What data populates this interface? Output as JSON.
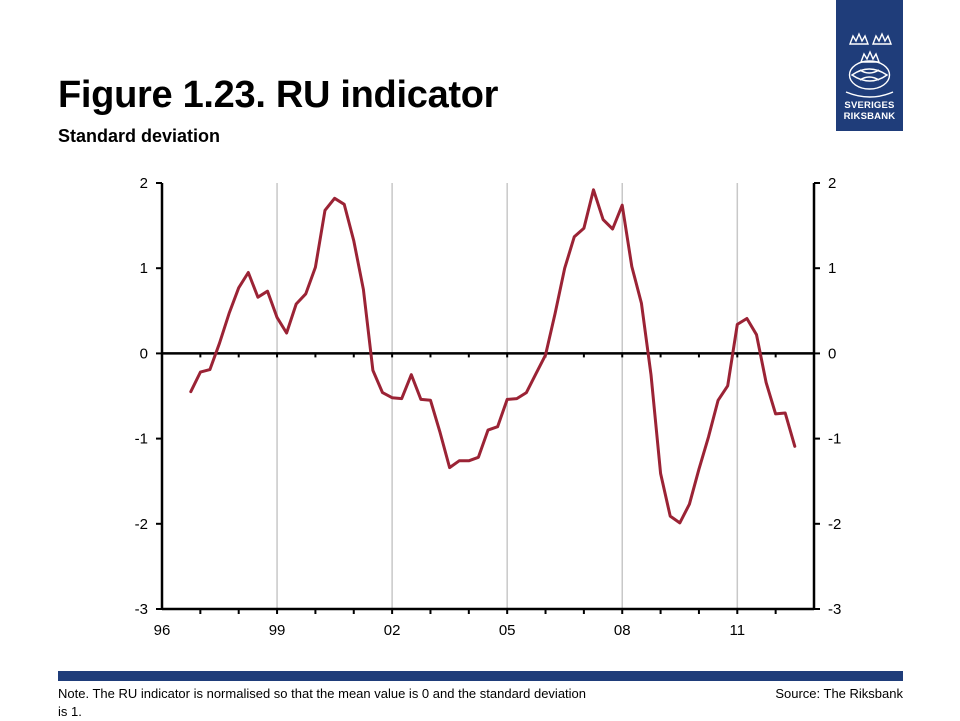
{
  "header": {
    "title": "Figure 1.23. RU indicator",
    "subtitle": "Standard deviation"
  },
  "logo": {
    "line1": "SVERIGES",
    "line2": "RIKSBANK",
    "background": "#1f3d7a"
  },
  "footer": {
    "note": "Note. The RU indicator is normalised so that the mean value is 0 and the standard deviation is 1.",
    "source": "Source: The Riksbank",
    "bar_color": "#1f3d7a"
  },
  "chart_data": {
    "type": "line",
    "title": "Figure 1.23. RU indicator",
    "ylabel": "Standard deviation",
    "xlim": [
      1996,
      2013
    ],
    "ylim": [
      -3,
      2
    ],
    "x_tick_labels": [
      "96",
      "99",
      "02",
      "05",
      "08",
      "11"
    ],
    "x_tick_years": [
      1996,
      1999,
      2002,
      2005,
      2008,
      2011
    ],
    "y_ticks_left": [
      "2",
      "1",
      "0",
      "-1",
      "-2",
      "-3"
    ],
    "y_ticks_right": [
      "2",
      "1",
      "0",
      "-1",
      "-2",
      "-3"
    ],
    "grid": "vertical",
    "line_color": "#9b2335",
    "series": [
      {
        "x": [
          1996.75,
          1997.0,
          1997.25,
          1997.5,
          1997.75,
          1998.0,
          1998.25,
          1998.5,
          1998.75,
          1999.0,
          1999.25,
          1999.5,
          1999.75,
          2000.0,
          2000.25,
          2000.5,
          2000.75,
          2001.0,
          2001.25,
          2001.5,
          2001.75,
          2002.0,
          2002.25,
          2002.5,
          2002.75,
          2003.0,
          2003.25,
          2003.5,
          2003.75,
          2004.0,
          2004.25,
          2004.5,
          2004.75,
          2005.0,
          2005.25,
          2005.5,
          2005.75,
          2006.0,
          2006.25,
          2006.5,
          2006.75,
          2007.0,
          2007.25,
          2007.5,
          2007.75,
          2008.0,
          2008.25,
          2008.5,
          2008.75,
          2009.0,
          2009.25,
          2009.5,
          2009.75,
          2010.0,
          2010.25,
          2010.5,
          2010.75,
          2011.0,
          2011.25,
          2011.5,
          2011.75,
          2012.0,
          2012.25,
          2012.5
        ],
        "y": [
          -0.45,
          -0.22,
          -0.19,
          0.12,
          0.47,
          0.77,
          0.95,
          0.66,
          0.73,
          0.42,
          0.24,
          0.58,
          0.7,
          1.01,
          1.68,
          1.82,
          1.75,
          1.32,
          0.75,
          -0.2,
          -0.46,
          -0.52,
          -0.53,
          -0.25,
          -0.54,
          -0.55,
          -0.93,
          -1.34,
          -1.26,
          -1.26,
          -1.22,
          -0.9,
          -0.86,
          -0.54,
          -0.53,
          -0.46,
          -0.24,
          -0.02,
          0.47,
          1.0,
          1.37,
          1.47,
          1.92,
          1.57,
          1.46,
          1.74,
          1.02,
          0.59,
          -0.25,
          -1.41,
          -1.91,
          -1.99,
          -1.77,
          -1.36,
          -0.98,
          -0.55,
          -0.38,
          0.34,
          0.41,
          0.22,
          -0.34,
          -0.71,
          -0.7,
          -1.09
        ]
      }
    ]
  }
}
